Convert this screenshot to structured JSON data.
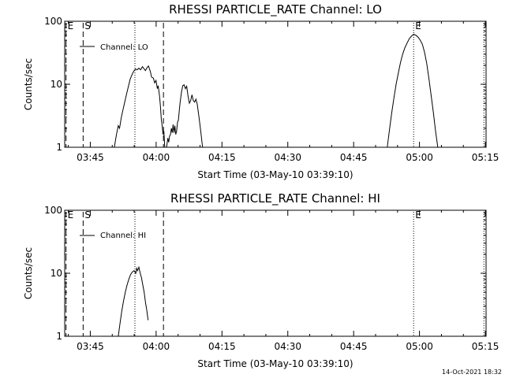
{
  "chart_data": [
    {
      "type": "line",
      "title": "RHESSI PARTICLE_RATE Channel: LO",
      "xlabel": "Start Time (03-May-10 03:39:10)",
      "ylabel": "Counts/sec",
      "y_scale": "log",
      "ylim": [
        1,
        100
      ],
      "xlim_minutes": [
        0,
        96
      ],
      "x_ticks": [
        {
          "label": "03:45",
          "minute": 5.83
        },
        {
          "label": "04:00",
          "minute": 20.83
        },
        {
          "label": "04:15",
          "minute": 35.83
        },
        {
          "label": "04:30",
          "minute": 50.83
        },
        {
          "label": "04:45",
          "minute": 65.83
        },
        {
          "label": "05:00",
          "minute": 80.83
        },
        {
          "label": "05:15",
          "minute": 95.83
        }
      ],
      "y_ticks": [
        {
          "label": "1",
          "value": 1
        },
        {
          "label": "10",
          "value": 10
        },
        {
          "label": "100",
          "value": 100
        }
      ],
      "legend": {
        "label": "Channel: LO",
        "placement": "top-left"
      },
      "markers": [
        {
          "label": "E",
          "minute": 0.3,
          "style": "dashed"
        },
        {
          "label": "S",
          "minute": 4.2,
          "style": "dashed"
        },
        {
          "label": "",
          "minute": 16.0,
          "style": "dotted"
        },
        {
          "label": "",
          "minute": 22.5,
          "style": "dashed"
        },
        {
          "label": "E",
          "minute": 79.5,
          "style": "dotted"
        },
        {
          "label": "",
          "minute": 95.5,
          "style": "dotted"
        }
      ],
      "series": [
        {
          "name": "Channel: LO",
          "segments": [
            [
              [
                11.3,
                1
              ],
              [
                11.8,
                1.6
              ],
              [
                12.2,
                2.2
              ],
              [
                12.5,
                2.0
              ],
              [
                12.9,
                3.0
              ],
              [
                13.3,
                4.0
              ],
              [
                13.7,
                5.3
              ],
              [
                14.1,
                7.0
              ],
              [
                14.5,
                9.2
              ],
              [
                14.9,
                12.0
              ],
              [
                15.3,
                14.0
              ],
              [
                15.7,
                16.0
              ],
              [
                16.1,
                17.5
              ],
              [
                16.5,
                17.0
              ],
              [
                16.9,
                18.0
              ],
              [
                17.3,
                17.0
              ],
              [
                17.7,
                19.0
              ],
              [
                18.1,
                17.5
              ],
              [
                18.4,
                16.5
              ],
              [
                18.8,
                18.5
              ],
              [
                19.1,
                19.5
              ],
              [
                19.5,
                16.0
              ],
              [
                19.8,
                13.0
              ],
              [
                20.2,
                12.5
              ],
              [
                20.5,
                10.5
              ],
              [
                20.8,
                11.5
              ],
              [
                21.1,
                8.5
              ],
              [
                21.3,
                9.5
              ],
              [
                21.6,
                6.5
              ],
              [
                21.8,
                4.5
              ],
              [
                22.0,
                2.8
              ],
              [
                22.2,
                2.2
              ],
              [
                22.4,
                1.6
              ],
              [
                22.6,
                1.8
              ],
              [
                22.8,
                1
              ]
            ],
            [
              [
                23.2,
                1
              ],
              [
                23.5,
                1.4
              ],
              [
                23.7,
                1.2
              ],
              [
                23.9,
                1.5
              ],
              [
                24.1,
                1.6
              ],
              [
                24.3,
                2.0
              ],
              [
                24.5,
                1.7
              ],
              [
                24.7,
                2.3
              ],
              [
                24.9,
                1.7
              ],
              [
                25.1,
                2.2
              ],
              [
                25.3,
                1.6
              ],
              [
                25.5,
                1.8
              ],
              [
                25.7,
                2.5
              ],
              [
                25.9,
                2.7
              ],
              [
                26.1,
                3.8
              ],
              [
                26.3,
                5.2
              ],
              [
                26.6,
                7.5
              ],
              [
                26.9,
                9.5
              ],
              [
                27.2,
                9.8
              ],
              [
                27.5,
                8.5
              ],
              [
                27.8,
                9.3
              ],
              [
                28.1,
                6.5
              ],
              [
                28.4,
                5.0
              ],
              [
                28.7,
                5.5
              ],
              [
                29.0,
                6.8
              ],
              [
                29.3,
                5.5
              ],
              [
                29.6,
                5.2
              ],
              [
                29.9,
                5.8
              ],
              [
                30.2,
                4.8
              ],
              [
                30.6,
                3.0
              ],
              [
                31.0,
                1.8
              ],
              [
                31.4,
                1
              ]
            ],
            [
              [
                73.5,
                1
              ],
              [
                74.0,
                1.9
              ],
              [
                74.5,
                3.5
              ],
              [
                75.0,
                6.0
              ],
              [
                75.5,
                10.0
              ],
              [
                76.0,
                15.0
              ],
              [
                76.5,
                22.0
              ],
              [
                77.0,
                30.0
              ],
              [
                77.5,
                38.0
              ],
              [
                78.0,
                45.0
              ],
              [
                78.5,
                53.0
              ],
              [
                79.0,
                58.0
              ],
              [
                79.5,
                62.0
              ],
              [
                80.0,
                60.0
              ],
              [
                80.5,
                56.0
              ],
              [
                81.0,
                50.0
              ],
              [
                81.5,
                43.0
              ],
              [
                82.0,
                32.0
              ],
              [
                82.5,
                21.0
              ],
              [
                83.0,
                12.0
              ],
              [
                83.5,
                6.5
              ],
              [
                84.0,
                3.5
              ],
              [
                84.5,
                1.8
              ],
              [
                85.0,
                1
              ]
            ]
          ]
        }
      ]
    },
    {
      "type": "line",
      "title": "RHESSI PARTICLE_RATE Channel: HI",
      "xlabel": "Start Time (03-May-10 03:39:10)",
      "ylabel": "Counts/sec",
      "y_scale": "log",
      "ylim": [
        1,
        100
      ],
      "xlim_minutes": [
        0,
        96
      ],
      "x_ticks": [
        {
          "label": "03:45",
          "minute": 5.83
        },
        {
          "label": "04:00",
          "minute": 20.83
        },
        {
          "label": "04:15",
          "minute": 35.83
        },
        {
          "label": "04:30",
          "minute": 50.83
        },
        {
          "label": "04:45",
          "minute": 65.83
        },
        {
          "label": "05:00",
          "minute": 80.83
        },
        {
          "label": "05:15",
          "minute": 95.83
        }
      ],
      "y_ticks": [
        {
          "label": "1",
          "value": 1
        },
        {
          "label": "10",
          "value": 10
        },
        {
          "label": "100",
          "value": 100
        }
      ],
      "legend": {
        "label": "Channel: HI",
        "placement": "top-left"
      },
      "markers": [
        {
          "label": "E",
          "minute": 0.3,
          "style": "dashed"
        },
        {
          "label": "S",
          "minute": 4.2,
          "style": "dashed"
        },
        {
          "label": "",
          "minute": 16.0,
          "style": "dotted"
        },
        {
          "label": "",
          "minute": 22.5,
          "style": "dashed"
        },
        {
          "label": "E",
          "minute": 79.5,
          "style": "dotted"
        },
        {
          "label": "",
          "minute": 95.5,
          "style": "dotted"
        }
      ],
      "series": [
        {
          "name": "Channel: HI",
          "segments": [
            [
              [
                12.2,
                1
              ],
              [
                12.6,
                1.6
              ],
              [
                13.0,
                2.5
              ],
              [
                13.4,
                3.6
              ],
              [
                13.8,
                5.0
              ],
              [
                14.2,
                6.5
              ],
              [
                14.6,
                8.0
              ],
              [
                15.0,
                9.5
              ],
              [
                15.4,
                10.5
              ],
              [
                15.8,
                11.0
              ],
              [
                16.2,
                10.0
              ],
              [
                16.4,
                12.0
              ],
              [
                16.6,
                11.0
              ],
              [
                16.9,
                12.5
              ],
              [
                17.2,
                10.0
              ],
              [
                17.5,
                8.5
              ],
              [
                17.8,
                6.5
              ],
              [
                18.1,
                5.0
              ],
              [
                18.4,
                3.5
              ],
              [
                18.7,
                2.6
              ],
              [
                19.0,
                1.8
              ]
            ]
          ]
        }
      ]
    }
  ],
  "footer": {
    "timestamp": "14-Oct-2021 18:32"
  }
}
